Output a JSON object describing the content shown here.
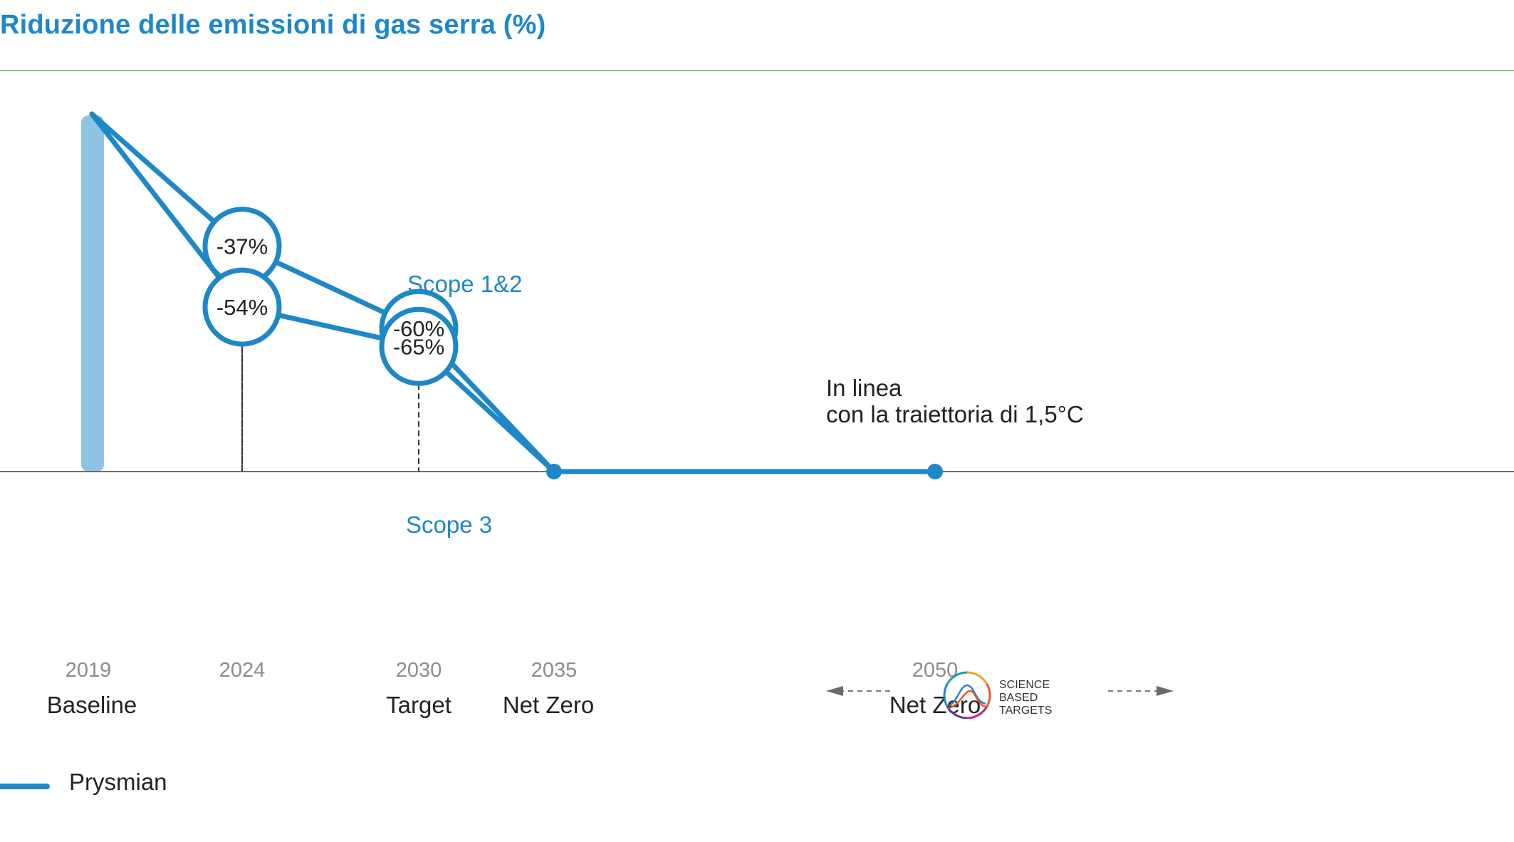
{
  "title": "Riduzione delle emissioni di gas serra (%)",
  "colors": {
    "accent": "#1e87c8",
    "baseline_bar": "#90c3e4",
    "rule": "#7cc66e",
    "axis": "#6e6e6e"
  },
  "chart_data": {
    "type": "line",
    "title": "Riduzione delle emissioni di gas serra (%)",
    "xlabel": "",
    "ylabel": "",
    "ylim": [
      -100,
      0
    ],
    "x": [
      2019,
      2024,
      2030,
      2035,
      2050
    ],
    "tick_labels": [
      {
        "year": "2019",
        "label": "Baseline"
      },
      {
        "year": "2024",
        "label": ""
      },
      {
        "year": "2030",
        "label": "Target"
      },
      {
        "year": "2035",
        "label": "Net Zero"
      },
      {
        "year": "2050",
        "label": "Net Zero"
      }
    ],
    "series": [
      {
        "name": "Scope 1&2",
        "x": [
          2019,
          2024,
          2030,
          2035
        ],
        "values": [
          0,
          -37,
          -60,
          -100
        ],
        "point_labels": [
          "",
          "-37%",
          "-60%",
          ""
        ]
      },
      {
        "name": "Scope 3",
        "x": [
          2019,
          2024,
          2030,
          2035
        ],
        "values": [
          0,
          -54,
          -65,
          -100
        ],
        "point_labels": [
          "",
          "-54%",
          "-65%",
          ""
        ]
      },
      {
        "name": "Net Zero",
        "x": [
          2035,
          2050
        ],
        "values": [
          -100,
          -100
        ],
        "point_labels": [
          "",
          ""
        ]
      }
    ],
    "annotation": [
      "In linea",
      "con la traiettoria di 1,5°C"
    ],
    "logo": [
      "SCIENCE",
      "BASED",
      "TARGETS"
    ],
    "legend": {
      "label": "Prysmian",
      "position": "bottom-left"
    }
  }
}
